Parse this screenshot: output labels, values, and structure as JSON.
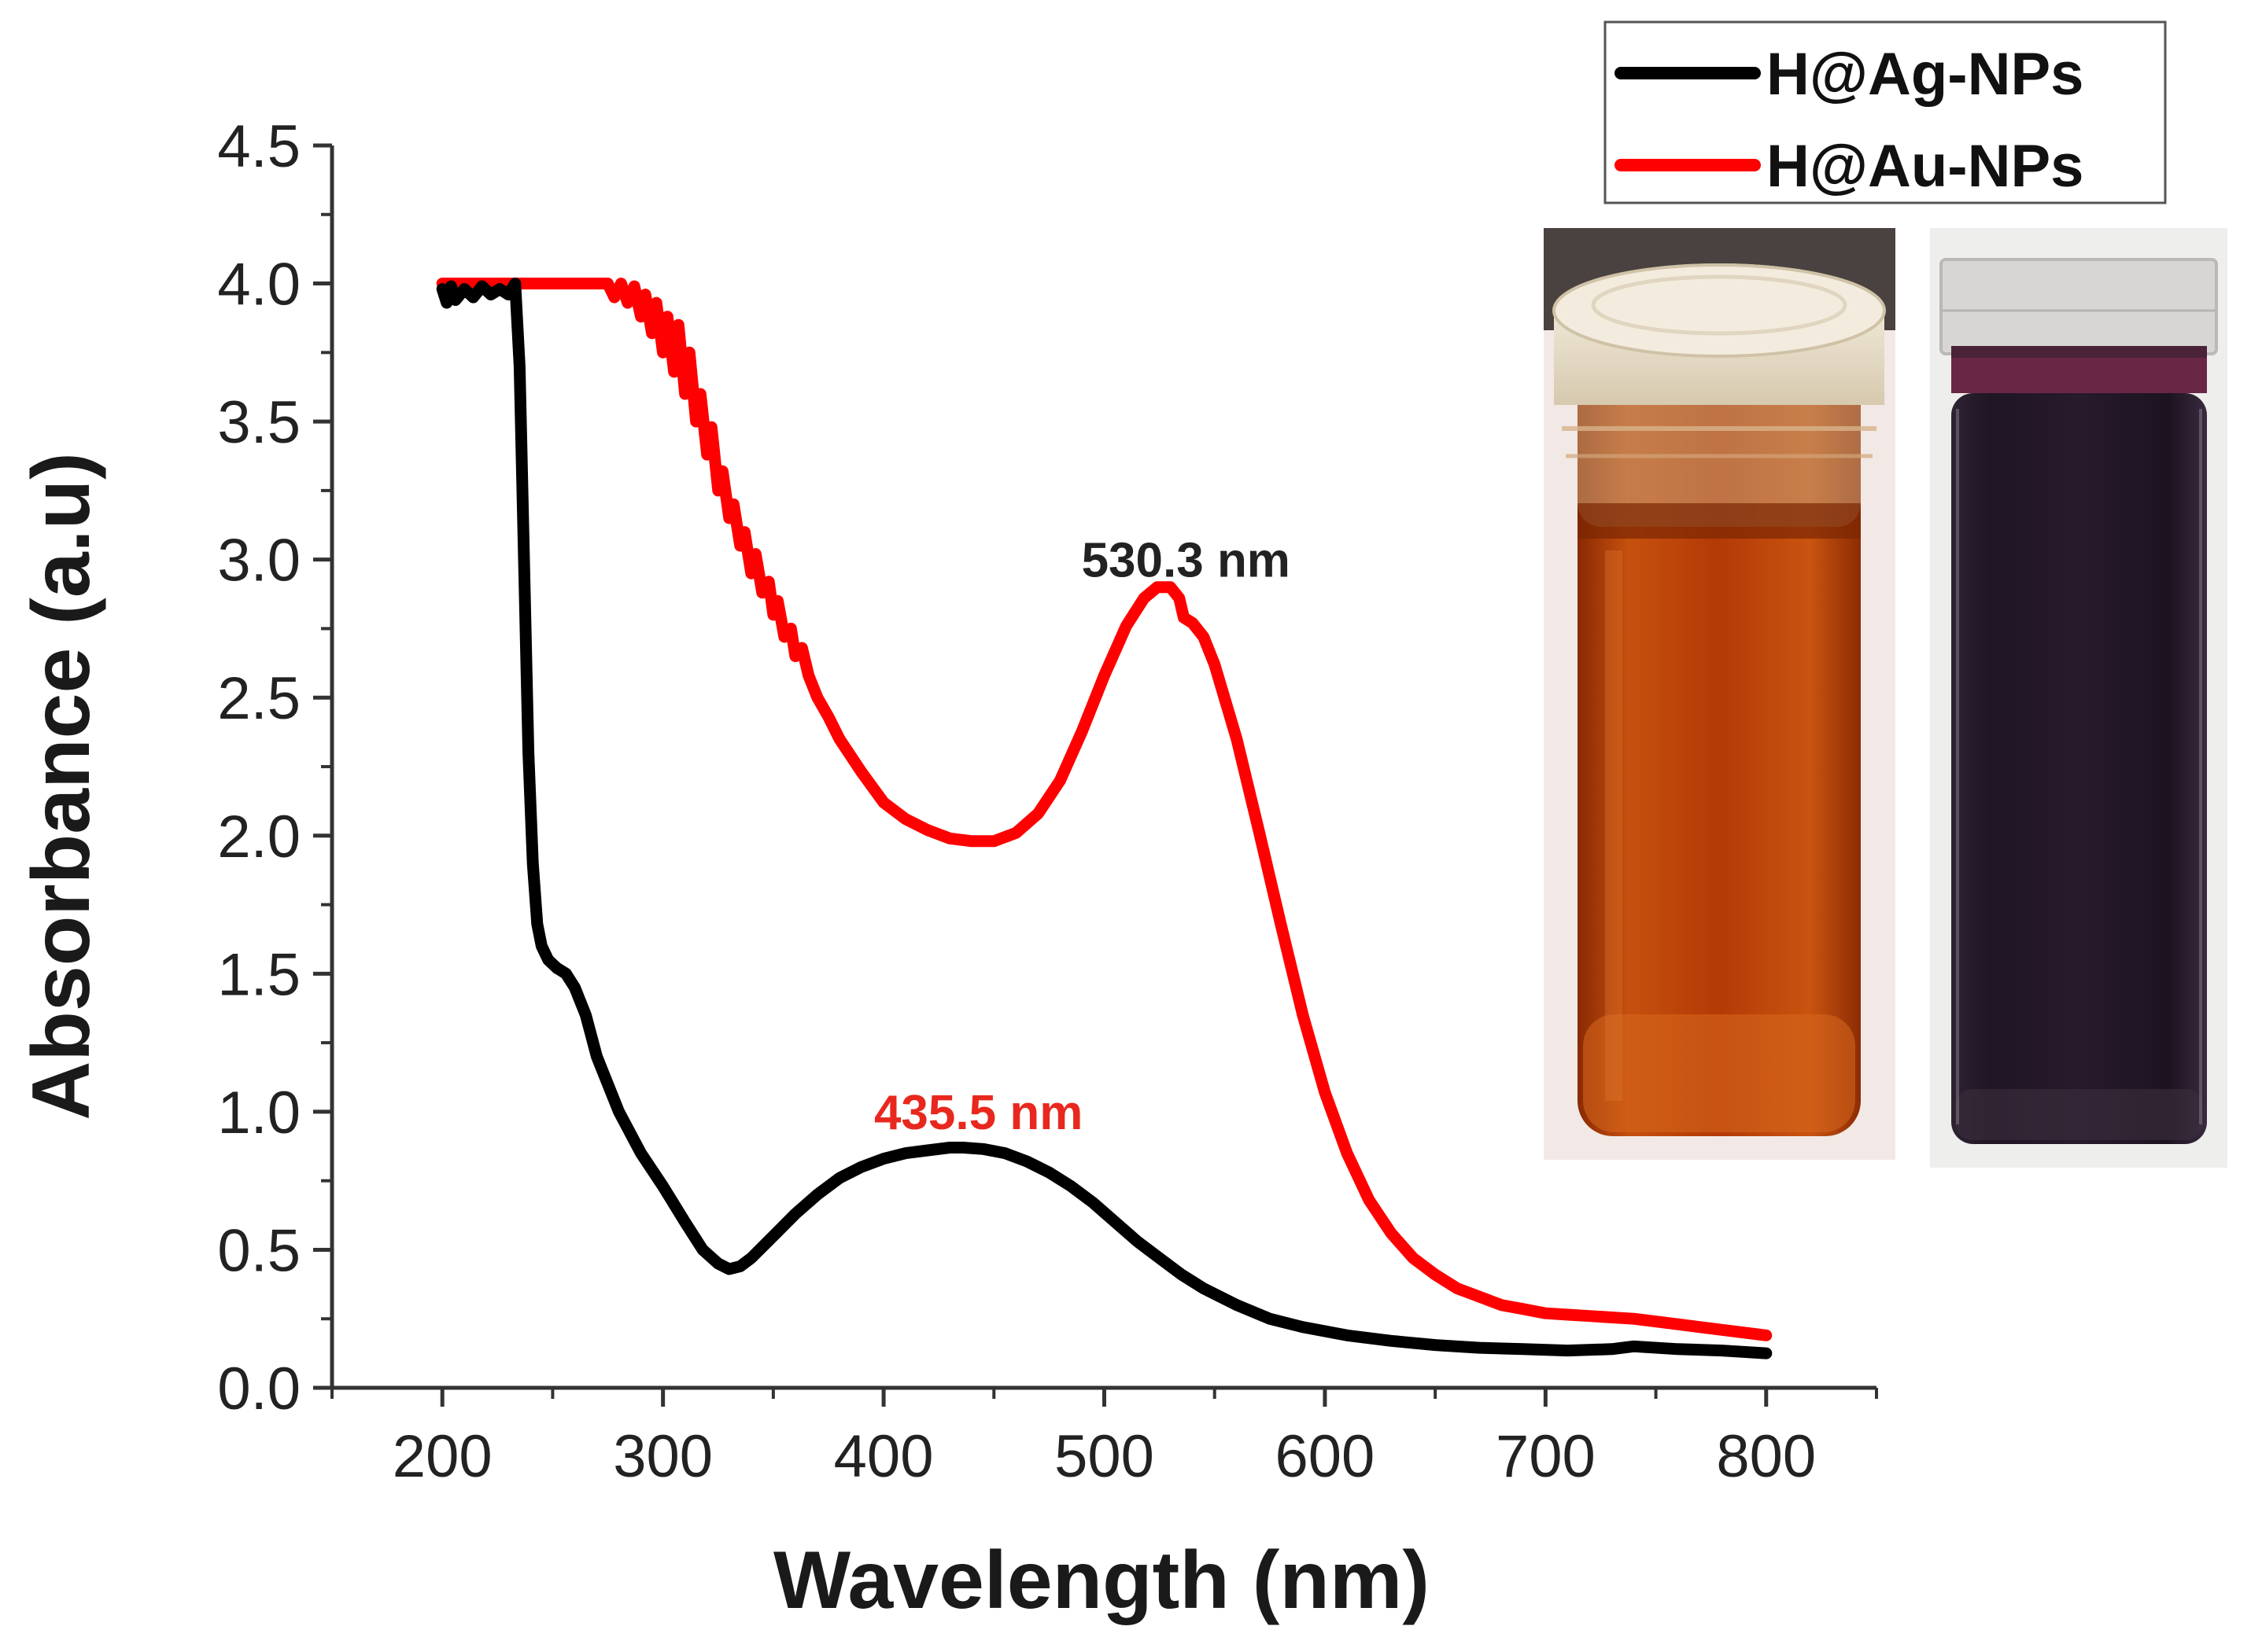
{
  "chart_data": {
    "type": "line",
    "xlabel": "Wavelength (nm)",
    "ylabel": "Absorbance (a.u)",
    "xlim": [
      150,
      850
    ],
    "ylim": [
      0,
      4.5
    ],
    "x_ticks": [
      200,
      300,
      400,
      500,
      600,
      700,
      800
    ],
    "y_ticks": [
      0.0,
      0.5,
      1.0,
      1.5,
      2.0,
      2.5,
      3.0,
      3.5,
      4.0,
      4.5
    ],
    "x_tick_labels": [
      "200",
      "300",
      "400",
      "500",
      "600",
      "700",
      "800"
    ],
    "y_tick_labels": [
      "0.0",
      "0.5",
      "1.0",
      "1.5",
      "2.0",
      "2.5",
      "3.0",
      "3.5",
      "4.0",
      "4.5"
    ],
    "legend_position": "top-right",
    "series": [
      {
        "name": "H@Ag-NPs",
        "color": "#000000",
        "points": [
          [
            200,
            3.98
          ],
          [
            202,
            3.93
          ],
          [
            204,
            3.99
          ],
          [
            206,
            3.94
          ],
          [
            210,
            3.98
          ],
          [
            214,
            3.95
          ],
          [
            218,
            3.99
          ],
          [
            222,
            3.96
          ],
          [
            226,
            3.98
          ],
          [
            230,
            3.96
          ],
          [
            233,
            4.0
          ],
          [
            235,
            3.7
          ],
          [
            237,
            3.0
          ],
          [
            239,
            2.3
          ],
          [
            241,
            1.9
          ],
          [
            243,
            1.68
          ],
          [
            245,
            1.6
          ],
          [
            248,
            1.55
          ],
          [
            252,
            1.52
          ],
          [
            256,
            1.5
          ],
          [
            260,
            1.45
          ],
          [
            265,
            1.35
          ],
          [
            270,
            1.2
          ],
          [
            280,
            1.0
          ],
          [
            290,
            0.85
          ],
          [
            300,
            0.73
          ],
          [
            310,
            0.6
          ],
          [
            318,
            0.5
          ],
          [
            325,
            0.45
          ],
          [
            330,
            0.43
          ],
          [
            335,
            0.44
          ],
          [
            340,
            0.47
          ],
          [
            350,
            0.55
          ],
          [
            360,
            0.63
          ],
          [
            370,
            0.7
          ],
          [
            380,
            0.76
          ],
          [
            390,
            0.8
          ],
          [
            400,
            0.83
          ],
          [
            410,
            0.85
          ],
          [
            420,
            0.86
          ],
          [
            430,
            0.87
          ],
          [
            436,
            0.87
          ],
          [
            445,
            0.865
          ],
          [
            455,
            0.85
          ],
          [
            465,
            0.82
          ],
          [
            475,
            0.78
          ],
          [
            485,
            0.73
          ],
          [
            495,
            0.67
          ],
          [
            505,
            0.6
          ],
          [
            515,
            0.53
          ],
          [
            525,
            0.47
          ],
          [
            535,
            0.41
          ],
          [
            545,
            0.36
          ],
          [
            560,
            0.3
          ],
          [
            575,
            0.25
          ],
          [
            590,
            0.22
          ],
          [
            610,
            0.19
          ],
          [
            630,
            0.17
          ],
          [
            650,
            0.155
          ],
          [
            670,
            0.145
          ],
          [
            690,
            0.14
          ],
          [
            710,
            0.135
          ],
          [
            730,
            0.14
          ],
          [
            740,
            0.15
          ],
          [
            760,
            0.14
          ],
          [
            780,
            0.135
          ],
          [
            800,
            0.125
          ]
        ]
      },
      {
        "name": "H@Au-NPs",
        "color": "#ff0000",
        "points": [
          [
            200,
            4.0
          ],
          [
            240,
            4.0
          ],
          [
            275,
            4.0
          ],
          [
            278,
            3.95
          ],
          [
            281,
            4.0
          ],
          [
            284,
            3.93
          ],
          [
            287,
            3.99
          ],
          [
            290,
            3.88
          ],
          [
            292,
            3.96
          ],
          [
            295,
            3.82
          ],
          [
            297,
            3.93
          ],
          [
            300,
            3.75
          ],
          [
            302,
            3.88
          ],
          [
            305,
            3.68
          ],
          [
            307,
            3.85
          ],
          [
            310,
            3.6
          ],
          [
            312,
            3.75
          ],
          [
            315,
            3.5
          ],
          [
            317,
            3.6
          ],
          [
            320,
            3.38
          ],
          [
            322,
            3.48
          ],
          [
            325,
            3.25
          ],
          [
            327,
            3.32
          ],
          [
            330,
            3.15
          ],
          [
            332,
            3.2
          ],
          [
            335,
            3.05
          ],
          [
            337,
            3.1
          ],
          [
            340,
            2.95
          ],
          [
            342,
            3.02
          ],
          [
            345,
            2.88
          ],
          [
            348,
            2.92
          ],
          [
            350,
            2.8
          ],
          [
            352,
            2.85
          ],
          [
            355,
            2.72
          ],
          [
            358,
            2.75
          ],
          [
            360,
            2.65
          ],
          [
            363,
            2.68
          ],
          [
            366,
            2.58
          ],
          [
            370,
            2.5
          ],
          [
            375,
            2.43
          ],
          [
            380,
            2.35
          ],
          [
            390,
            2.23
          ],
          [
            400,
            2.12
          ],
          [
            410,
            2.06
          ],
          [
            420,
            2.02
          ],
          [
            430,
            1.99
          ],
          [
            440,
            1.98
          ],
          [
            450,
            1.98
          ],
          [
            460,
            2.01
          ],
          [
            470,
            2.08
          ],
          [
            480,
            2.2
          ],
          [
            490,
            2.38
          ],
          [
            500,
            2.58
          ],
          [
            510,
            2.76
          ],
          [
            518,
            2.86
          ],
          [
            524,
            2.9
          ],
          [
            530,
            2.9
          ],
          [
            534,
            2.86
          ],
          [
            536,
            2.79
          ],
          [
            540,
            2.77
          ],
          [
            545,
            2.72
          ],
          [
            550,
            2.62
          ],
          [
            560,
            2.35
          ],
          [
            570,
            2.02
          ],
          [
            580,
            1.68
          ],
          [
            590,
            1.35
          ],
          [
            600,
            1.07
          ],
          [
            610,
            0.85
          ],
          [
            620,
            0.68
          ],
          [
            630,
            0.56
          ],
          [
            640,
            0.47
          ],
          [
            650,
            0.41
          ],
          [
            660,
            0.36
          ],
          [
            670,
            0.33
          ],
          [
            680,
            0.3
          ],
          [
            690,
            0.285
          ],
          [
            700,
            0.27
          ],
          [
            710,
            0.265
          ],
          [
            720,
            0.26
          ],
          [
            730,
            0.255
          ],
          [
            740,
            0.25
          ],
          [
            750,
            0.24
          ],
          [
            760,
            0.23
          ],
          [
            770,
            0.22
          ],
          [
            780,
            0.21
          ],
          [
            790,
            0.2
          ],
          [
            800,
            0.19
          ]
        ]
      }
    ],
    "annotations": [
      {
        "text": "530.3 nm",
        "x": 537,
        "y": 3.0,
        "color": "#222222"
      },
      {
        "text": "435.5 nm",
        "x": 443,
        "y": 1.0,
        "color": "#e8281e"
      }
    ]
  },
  "legend": {
    "items": [
      {
        "label": "H@Ag-NPs",
        "color": "#000000"
      },
      {
        "label": "H@Au-NPs",
        "color": "#ff0000"
      }
    ]
  },
  "photos": {
    "left_vial": {
      "liquid": "#b43a06",
      "cap": "#e7ddca",
      "background": "#f2e9e6"
    },
    "right_vial": {
      "liquid": "#241728",
      "rim": "#702848",
      "background": "#eeeeec"
    }
  }
}
